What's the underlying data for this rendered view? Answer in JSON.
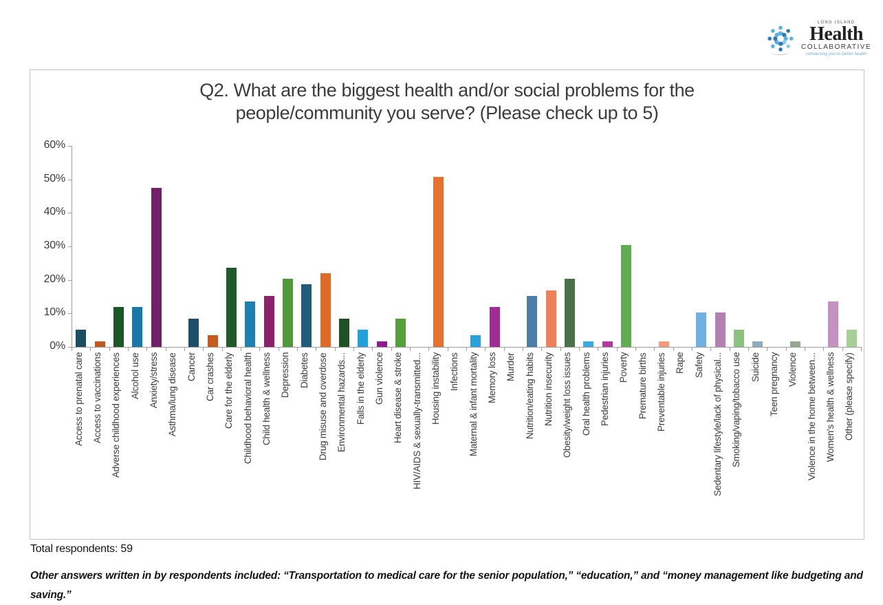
{
  "header": {
    "logo": {
      "region": "LONG ISLAND",
      "name": "Health",
      "subname": "COLLABORATIVE",
      "tagline": "connecting you to better health",
      "icon": "people-circle-icon",
      "colors": {
        "light_blue": "#5bb0e4",
        "mid_blue": "#2d79b4",
        "text": "#232021"
      }
    }
  },
  "chart_data": {
    "type": "bar",
    "title_lines": [
      "Q2. What are the biggest health and/or social problems for the",
      "people/community you serve? (Please check up to 5)"
    ],
    "xlabel": "",
    "ylabel": "",
    "ylim": [
      0,
      60
    ],
    "ytick_values": [
      0,
      10,
      20,
      30,
      40,
      50,
      60
    ],
    "ytick_labels": [
      "0%",
      "10%",
      "20%",
      "30%",
      "40%",
      "50%",
      "60%"
    ],
    "grid": false,
    "legend": "none",
    "categories": [
      "Access to prenatal care",
      "Access to vaccinations",
      "Adverse childhood experiences",
      "Alcohol use",
      "Anxiety/stress",
      "Asthma/lung disease",
      "Cancer",
      "Car crashes",
      "Care for the elderly",
      "Childhood behavioral health",
      "Child health & wellness",
      "Depression",
      "Diabetes",
      "Drug misuse and overdose",
      "Environmental hazards...",
      "Falls in the elderly",
      "Gun violence",
      "Heart disease & stroke",
      "HIV/AIDS & sexually-transmitted...",
      "Housing instability",
      "Infections",
      "Maternal & infant mortality",
      "Memory loss",
      "Murder",
      "Nutrition/eating habits",
      "Nutrition insecurity",
      "Obesity/weight loss issues",
      "Oral health problems",
      "Pedestrian injuries",
      "Poverty",
      "Premature births",
      "Preventable injuries",
      "Rape",
      "Safety",
      "Sedentary lifestyle/lack of physical...",
      "Smoking/vaping/tobacco use",
      "Suicide",
      "Teen pregnancy",
      "Violence",
      "Violence in the home between...",
      "Women's health & wellness",
      "Other (please specify)"
    ],
    "values": [
      5.1,
      1.7,
      11.9,
      11.9,
      47.5,
      0,
      8.5,
      3.4,
      23.7,
      13.6,
      15.3,
      20.3,
      18.6,
      22.0,
      8.5,
      5.1,
      1.7,
      8.5,
      0,
      50.8,
      0,
      3.4,
      11.9,
      0,
      15.3,
      16.9,
      20.3,
      1.7,
      1.7,
      30.5,
      0,
      1.7,
      0,
      10.2,
      10.2,
      5.1,
      1.7,
      0,
      1.7,
      0,
      13.6,
      5.1
    ],
    "colors": [
      "#1c4e63",
      "#c05a21",
      "#1d5626",
      "#1878a8",
      "#71206a",
      null,
      "#1d4f66",
      "#c45c1f",
      "#1f5a2a",
      "#1e80b0",
      "#8c2169",
      "#4f9939",
      "#1e5d7a",
      "#dd6b26",
      "#1d5227",
      "#22a0d8",
      "#8e1c8e",
      "#54a03b",
      null,
      "#e5722f",
      null,
      "#2ba1dc",
      "#a12d93",
      null,
      "#4d7ea8",
      "#ef8158",
      "#4b7147",
      "#3ea9df",
      "#b13a9f",
      "#61ab53",
      null,
      "#f49a7e",
      null,
      "#6fb2e2",
      "#b380b1",
      "#8cc17e",
      "#92a8bb",
      null,
      "#97a794",
      null,
      "#c491c3",
      "#a6cf98"
    ]
  },
  "footer": {
    "total_respondents": "Total respondents: 59",
    "note": "Other answers written in by respondents included: “Transportation to medical care for the senior population,” “education,” and “money management like budgeting and saving.”"
  }
}
